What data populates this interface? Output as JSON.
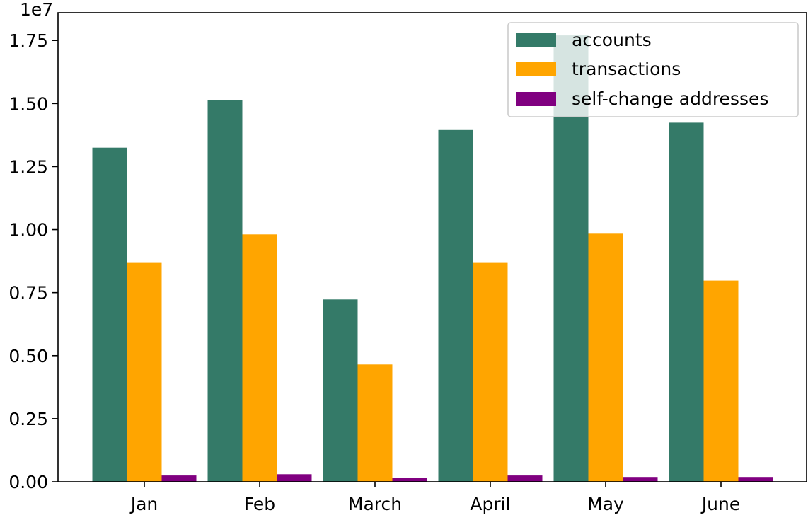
{
  "chart_data": {
    "type": "bar",
    "categories": [
      "Jan",
      "Feb",
      "March",
      "April",
      "May",
      "June"
    ],
    "series": [
      {
        "name": "accounts",
        "color": "#347a68",
        "values": [
          13250000,
          15120000,
          7230000,
          13950000,
          17700000,
          14240000
        ]
      },
      {
        "name": "transactions",
        "color": "#ffa500",
        "values": [
          8680000,
          9810000,
          4650000,
          8680000,
          9840000,
          7980000
        ]
      },
      {
        "name": "self-change addresses",
        "color": "#800080",
        "values": [
          250000,
          300000,
          140000,
          250000,
          190000,
          190000
        ]
      }
    ],
    "ylim": [
      0,
      18600000
    ],
    "yticks": [
      0,
      2500000,
      5000000,
      7500000,
      10000000,
      12500000,
      15000000,
      17500000
    ],
    "ytick_labels": [
      "0.00",
      "0.25",
      "0.50",
      "0.75",
      "1.00",
      "1.25",
      "1.50",
      "1.75"
    ],
    "y_offset_label": "1e7",
    "legend_position": "top-right",
    "grid": false
  }
}
